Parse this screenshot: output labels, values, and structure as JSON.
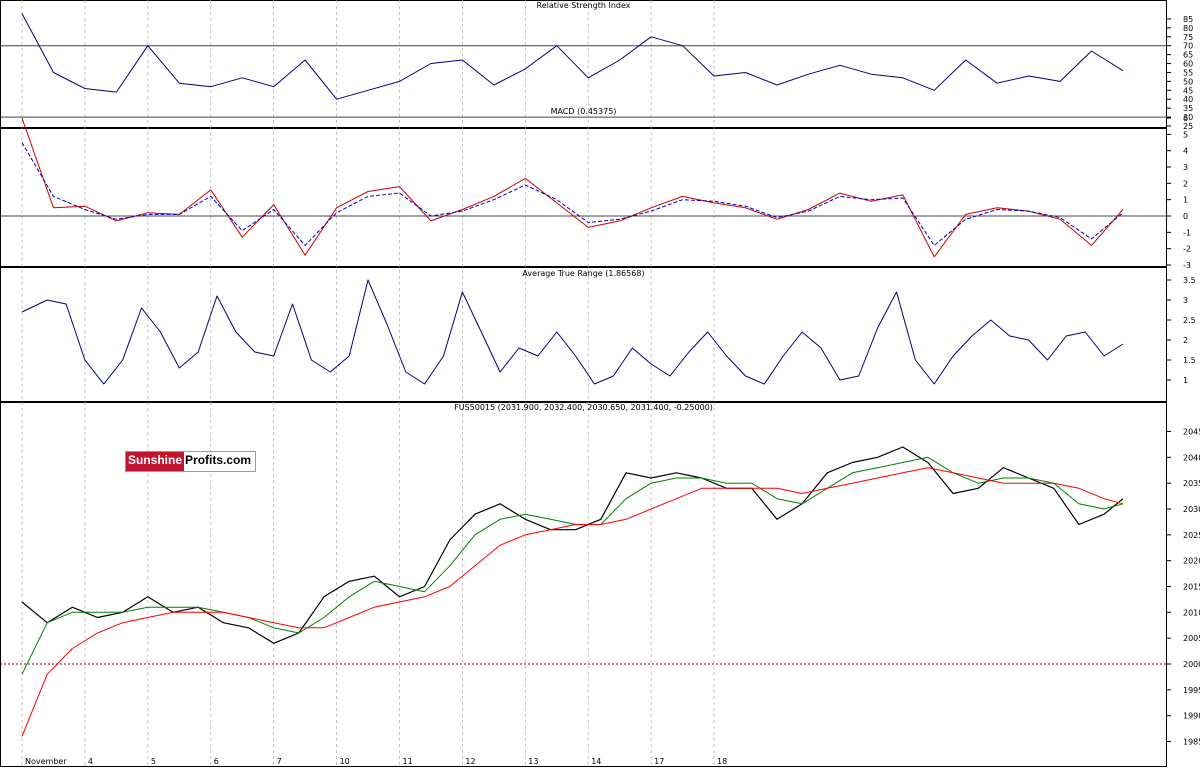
{
  "watermark": {
    "part1": "Sunshine",
    "part2": "Profits.com",
    "color": "#c0152f"
  },
  "chart_data": [
    {
      "type": "line",
      "title": "Relative Strength Index",
      "ylim": [
        25,
        90
      ],
      "yticks": [
        25,
        30,
        35,
        40,
        45,
        50,
        55,
        60,
        65,
        70,
        75,
        80,
        85
      ],
      "hlines": [
        70,
        30
      ],
      "grid": true,
      "series": [
        {
          "color": "#000080",
          "x": [
            0,
            0.5,
            1,
            1.5,
            2,
            2.5,
            3,
            3.5,
            4,
            4.5,
            5,
            5.5,
            6,
            6.5,
            7,
            7.5,
            8,
            8.5,
            9,
            9.5,
            10,
            10.5,
            11,
            11.5,
            12,
            12.5,
            13,
            13.5,
            14,
            14.5,
            15,
            15.5,
            16,
            16.5,
            17,
            17.5
          ],
          "values": [
            88,
            55,
            46,
            44,
            70,
            49,
            47,
            52,
            47,
            62,
            40,
            45,
            50,
            60,
            62,
            48,
            57,
            70,
            52,
            62,
            75,
            70,
            53,
            55,
            48,
            54,
            59,
            54,
            52,
            45,
            62,
            49,
            53,
            50,
            67,
            56
          ]
        }
      ]
    },
    {
      "type": "line",
      "title": "MACD (0.45375)",
      "ylim": [
        -3,
        6
      ],
      "yticks": [
        -3,
        -2,
        -1,
        0,
        1,
        2,
        3,
        4,
        5,
        6
      ],
      "hlines": [
        0
      ],
      "grid": true,
      "series": [
        {
          "color": "#cc0000",
          "style": "solid",
          "x": [
            0,
            0.5,
            1,
            1.5,
            2,
            2.5,
            3,
            3.5,
            4,
            4.5,
            5,
            5.5,
            6,
            6.5,
            7,
            7.5,
            8,
            8.5,
            9,
            9.5,
            10,
            10.5,
            11,
            11.5,
            12,
            12.5,
            13,
            13.5,
            14,
            14.5,
            15,
            15.5,
            16,
            16.5,
            17,
            17.5
          ],
          "values": [
            6,
            0.5,
            0.6,
            -0.3,
            0.2,
            0.1,
            1.6,
            -1.3,
            0.7,
            -2.4,
            0.5,
            1.5,
            1.8,
            -0.3,
            0.4,
            1.2,
            2.3,
            0.8,
            -0.7,
            -0.3,
            0.5,
            1.2,
            0.8,
            0.5,
            -0.2,
            0.4,
            1.4,
            0.9,
            1.3,
            -2.5,
            0.1,
            0.5,
            0.3,
            -0.2,
            -1.8,
            0.4
          ]
        },
        {
          "color": "#0000cc",
          "style": "dashed",
          "x": [
            0,
            0.5,
            1,
            1.5,
            2,
            2.5,
            3,
            3.5,
            4,
            4.5,
            5,
            5.5,
            6,
            6.5,
            7,
            7.5,
            8,
            8.5,
            9,
            9.5,
            10,
            10.5,
            11,
            11.5,
            12,
            12.5,
            13,
            13.5,
            14,
            14.5,
            15,
            15.5,
            16,
            16.5,
            17,
            17.5
          ],
          "values": [
            4.5,
            1.2,
            0.4,
            -0.2,
            0.1,
            0.1,
            1.2,
            -0.9,
            0.4,
            -1.8,
            0.2,
            1.2,
            1.4,
            0,
            0.3,
            1,
            1.9,
            1,
            -0.4,
            -0.2,
            0.3,
            1,
            0.9,
            0.6,
            -0.1,
            0.3,
            1.2,
            1,
            1.1,
            -1.8,
            -0.2,
            0.4,
            0.3,
            -0.1,
            -1.4,
            0.2
          ]
        }
      ]
    },
    {
      "type": "line",
      "title": "Average True Range (1.86568)",
      "ylim": [
        0.5,
        3.75
      ],
      "yticks": [
        1,
        1.5,
        2,
        2.5,
        3,
        3.5
      ],
      "grid": true,
      "series": [
        {
          "color": "#000080",
          "x": [
            0,
            0.4,
            0.7,
            1,
            1.3,
            1.6,
            1.9,
            2.2,
            2.5,
            2.8,
            3.1,
            3.4,
            3.7,
            4,
            4.3,
            4.6,
            4.9,
            5.2,
            5.5,
            5.8,
            6.1,
            6.4,
            6.7,
            7,
            7.3,
            7.6,
            7.9,
            8.2,
            8.5,
            8.8,
            9.1,
            9.4,
            9.7,
            10,
            10.3,
            10.6,
            10.9,
            11.2,
            11.5,
            11.8,
            12.1,
            12.4,
            12.7,
            13,
            13.3,
            13.6,
            13.9,
            14.2,
            14.5,
            14.8,
            15.1,
            15.4,
            15.7,
            16,
            16.3,
            16.6,
            16.9,
            17.2,
            17.5
          ],
          "values": [
            2.7,
            3,
            2.9,
            1.5,
            0.9,
            1.5,
            2.8,
            2.2,
            1.3,
            1.7,
            3.1,
            2.2,
            1.7,
            1.6,
            2.9,
            1.5,
            1.2,
            1.6,
            3.5,
            2.4,
            1.2,
            0.9,
            1.6,
            3.2,
            2.2,
            1.2,
            1.8,
            1.6,
            2.2,
            1.6,
            0.9,
            1.1,
            1.8,
            1.4,
            1.1,
            1.7,
            2.2,
            1.6,
            1.1,
            0.9,
            1.6,
            2.2,
            1.8,
            1,
            1.1,
            2.3,
            3.2,
            1.5,
            0.9,
            1.6,
            2.1,
            2.5,
            2.1,
            2,
            1.5,
            2.1,
            2.2,
            1.6,
            1.9
          ]
        }
      ]
    },
    {
      "type": "line",
      "title": "FUS50015 (2031.900, 2032.400, 2030.650, 2031.400, -0.25000)",
      "ylim": [
        1982,
        2048
      ],
      "yticks": [
        1985,
        1990,
        1995,
        2000,
        2005,
        2010,
        2015,
        2020,
        2025,
        2030,
        2035,
        2040,
        2045
      ],
      "hlines": [
        2000
      ],
      "grid": true,
      "x_range": [
        -0.35,
        18.2
      ],
      "xticks": [
        {
          "x": 0,
          "label": "November"
        },
        {
          "x": 1,
          "label": "4"
        },
        {
          "x": 2,
          "label": "5"
        },
        {
          "x": 3,
          "label": "6"
        },
        {
          "x": 4,
          "label": "7"
        },
        {
          "x": 5,
          "label": "10"
        },
        {
          "x": 6,
          "label": "11"
        },
        {
          "x": 7,
          "label": "12"
        },
        {
          "x": 8,
          "label": "13"
        },
        {
          "x": 9,
          "label": "14"
        },
        {
          "x": 10,
          "label": "17"
        },
        {
          "x": 11,
          "label": "18"
        }
      ],
      "series": [
        {
          "color": "#000000",
          "width": 1.2,
          "x": [
            0,
            0.4,
            0.8,
            1.2,
            1.6,
            2,
            2.4,
            2.8,
            3.2,
            3.6,
            4,
            4.4,
            4.8,
            5.2,
            5.6,
            6,
            6.4,
            6.8,
            7.2,
            7.6,
            8,
            8.4,
            8.8,
            9.2,
            9.6,
            10,
            10.4,
            10.8,
            11.2,
            11.6,
            12,
            12.4,
            12.8,
            13.2,
            13.6,
            14,
            14.4,
            14.8,
            15.2,
            15.6,
            16,
            16.4,
            16.8,
            17.2,
            17.5
          ],
          "values": [
            2012,
            2008,
            2011,
            2009,
            2010,
            2013,
            2010,
            2011,
            2008,
            2007,
            2004,
            2006,
            2013,
            2016,
            2017,
            2013,
            2015,
            2024,
            2029,
            2031,
            2028,
            2026,
            2026,
            2028,
            2037,
            2036,
            2037,
            2036,
            2034,
            2034,
            2028,
            2031,
            2037,
            2039,
            2040,
            2042,
            2039,
            2033,
            2034,
            2038,
            2036,
            2034,
            2027,
            2029,
            2032
          ]
        },
        {
          "color": "#008000",
          "width": 1,
          "x": [
            0,
            0.4,
            0.8,
            1.2,
            1.6,
            2,
            2.4,
            2.8,
            3.2,
            3.6,
            4,
            4.4,
            4.8,
            5.2,
            5.6,
            6,
            6.4,
            6.8,
            7.2,
            7.6,
            8,
            8.4,
            8.8,
            9.2,
            9.6,
            10,
            10.4,
            10.8,
            11.2,
            11.6,
            12,
            12.4,
            12.8,
            13.2,
            13.6,
            14,
            14.4,
            14.8,
            15.2,
            15.6,
            16,
            16.4,
            16.8,
            17.2,
            17.5
          ],
          "values": [
            1998,
            2008,
            2010,
            2010,
            2010,
            2011,
            2011,
            2011,
            2010,
            2009,
            2007,
            2006,
            2009,
            2013,
            2016,
            2015,
            2014,
            2019,
            2025,
            2028,
            2029,
            2028,
            2027,
            2027,
            2032,
            2035,
            2036,
            2036,
            2035,
            2035,
            2032,
            2031,
            2034,
            2037,
            2038,
            2039,
            2040,
            2037,
            2035,
            2036,
            2036,
            2035,
            2031,
            2030,
            2031
          ]
        },
        {
          "color": "#ff0000",
          "width": 1,
          "x": [
            0,
            0.4,
            0.8,
            1.2,
            1.6,
            2,
            2.4,
            2.8,
            3.2,
            3.6,
            4,
            4.4,
            4.8,
            5.2,
            5.6,
            6,
            6.4,
            6.8,
            7.2,
            7.6,
            8,
            8.4,
            8.8,
            9.2,
            9.6,
            10,
            10.4,
            10.8,
            11.2,
            11.6,
            12,
            12.4,
            12.8,
            13.2,
            13.6,
            14,
            14.4,
            14.8,
            15.2,
            15.6,
            16,
            16.4,
            16.8,
            17.2,
            17.5
          ],
          "values": [
            1986,
            1998,
            2003,
            2006,
            2008,
            2009,
            2010,
            2010,
            2010,
            2009,
            2008,
            2007,
            2007,
            2009,
            2011,
            2012,
            2013,
            2015,
            2019,
            2023,
            2025,
            2026,
            2027,
            2027,
            2028,
            2030,
            2032,
            2034,
            2034,
            2034,
            2034,
            2033,
            2034,
            2035,
            2036,
            2037,
            2038,
            2037,
            2036,
            2035,
            2035,
            2035,
            2034,
            2032,
            2031
          ]
        }
      ]
    }
  ]
}
